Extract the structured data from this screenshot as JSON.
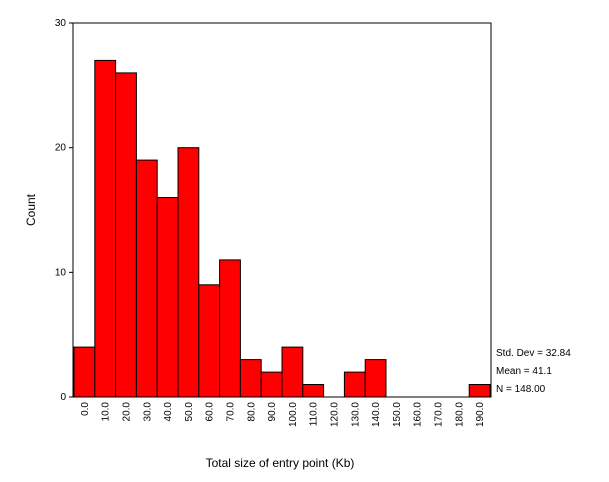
{
  "chart_data": {
    "type": "bar",
    "bin_width": 10,
    "categories": [
      "0.0",
      "10.0",
      "20.0",
      "30.0",
      "40.0",
      "50.0",
      "60.0",
      "70.0",
      "80.0",
      "90.0",
      "100.0",
      "110.0",
      "120.0",
      "130.0",
      "140.0",
      "150.0",
      "160.0",
      "170.0",
      "180.0",
      "190.0"
    ],
    "values": [
      4,
      27,
      26,
      19,
      16,
      20,
      9,
      11,
      3,
      2,
      4,
      1,
      0,
      2,
      3,
      0,
      0,
      0,
      0,
      1
    ],
    "title": "",
    "xlabel": "Total size of entry point (Kb)",
    "ylabel": "Count",
    "ylim": [
      0,
      30
    ],
    "yticks": [
      "0",
      "10",
      "20",
      "30"
    ],
    "bar_color": "#ff0000",
    "grid": false,
    "stats": {
      "std_dev": "Std. Dev = 32.84",
      "mean": "Mean = 41.1",
      "n": "N = 148.00"
    }
  }
}
